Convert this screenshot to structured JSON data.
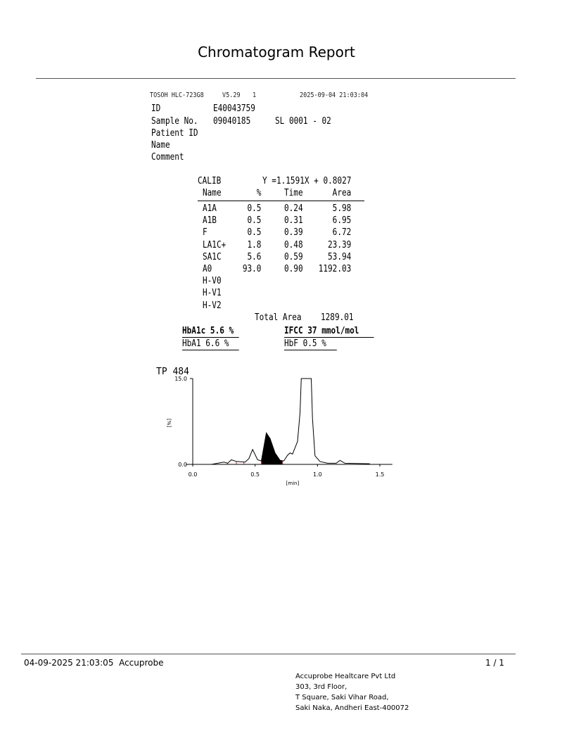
{
  "report_title": "Chromatogram Report",
  "instrument": {
    "model": "TOSOH HLC-723G8",
    "version": "V5.29",
    "unit": "1",
    "datetime": "2025-09-04 21:03:04"
  },
  "sample": {
    "id_label": "ID",
    "id": "E40043759",
    "sample_no_label": "Sample No.",
    "sample_no": "09040185",
    "position": "SL 0001 - 02",
    "patient_id_label": "Patient ID",
    "name_label": "Name",
    "comment_label": "Comment"
  },
  "calibration": {
    "label": "CALIB",
    "equation": "Y =1.1591X + 0.8027"
  },
  "table": {
    "headers": [
      "Name",
      "%",
      "Time",
      "Area"
    ],
    "rows": [
      [
        "A1A",
        "0.5",
        "0.24",
        "5.98"
      ],
      [
        "A1B",
        "0.5",
        "0.31",
        "6.95"
      ],
      [
        "F",
        "0.5",
        "0.39",
        "6.72"
      ],
      [
        "LA1C+",
        "1.8",
        "0.48",
        "23.39"
      ],
      [
        "SA1C",
        "5.6",
        "0.59",
        "53.94"
      ],
      [
        "A0",
        "93.0",
        "0.90",
        "1192.03"
      ],
      [
        "H-V0",
        "",
        "",
        ""
      ],
      [
        "H-V1",
        "",
        "",
        ""
      ],
      [
        "H-V2",
        "",
        "",
        ""
      ]
    ],
    "total_area_label": "Total Area",
    "total_area": "1289.01"
  },
  "results": {
    "hba1c": "HbA1c 5.6 %",
    "ifcc": "IFCC 37 mmol/mol",
    "hba1": "HbA1 6.6 %",
    "hbf": "HbF 0.5 %"
  },
  "chart_data": {
    "type": "line",
    "title": "TP  484",
    "xlabel": "[min]",
    "ylabel": "[%]",
    "xlim": [
      0.0,
      1.6
    ],
    "ylim": [
      0.0,
      15.0
    ],
    "xticks": [
      "0.0",
      "0.5",
      "1.0",
      "1.5"
    ],
    "yticks": [
      "0.0",
      "15.0"
    ],
    "grid": false,
    "trace": {
      "x": [
        0.15,
        0.2,
        0.25,
        0.28,
        0.31,
        0.35,
        0.42,
        0.45,
        0.48,
        0.52,
        0.55,
        0.59,
        0.62,
        0.66,
        0.7,
        0.73,
        0.76,
        0.78,
        0.8,
        0.84,
        0.86,
        0.87,
        0.95,
        0.96,
        0.98,
        1.02,
        1.08,
        1.15,
        1.18,
        1.22,
        1.42
      ],
      "y": [
        0,
        0.2,
        0.4,
        0.2,
        0.8,
        0.5,
        0.4,
        1.0,
        2.6,
        0.8,
        0.6,
        5.5,
        4.5,
        2.0,
        0.7,
        0.6,
        1.6,
        2.0,
        1.8,
        4.0,
        9.0,
        15,
        15,
        8.0,
        1.5,
        0.5,
        0.2,
        0.2,
        0.7,
        0.2,
        0.1
      ]
    },
    "shaded_peak": {
      "name": "SA1C",
      "x_range": [
        0.55,
        0.72
      ]
    },
    "peak_boundaries": [
      0.28,
      0.35,
      0.41,
      0.55,
      0.72
    ],
    "baseline_range": [
      0.05,
      1.6
    ],
    "colors": {
      "trace": "#000000",
      "baseline": "#cc3333"
    }
  },
  "footer": {
    "printed": "04-09-2025 21:03:05  Accuprobe",
    "page": "1 / 1",
    "address": [
      "Accuprobe Healtcare Pvt Ltd",
      "303, 3rd Floor,",
      "T Square, Saki Vihar Road,",
      "Saki Naka, Andheri East-400072"
    ]
  }
}
